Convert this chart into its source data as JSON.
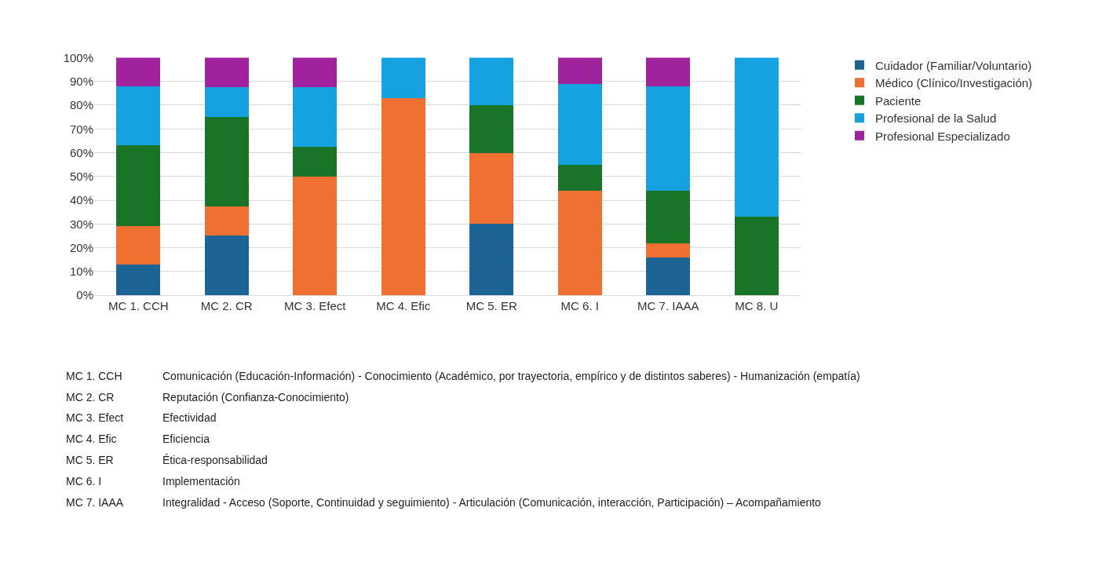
{
  "chart_data": {
    "type": "bar",
    "stacked": true,
    "categories": [
      "MC 1. CCH",
      "MC 2. CR",
      "MC 3. Efect",
      "MC 4. Efic",
      "MC 5. ER",
      "MC 6. I",
      "MC 7. IAAA",
      "MC 8. U"
    ],
    "series": [
      {
        "name": "Cuidador (Familiar/Voluntario)",
        "color": "#1d6494",
        "values": [
          13,
          25,
          0,
          0,
          30,
          0,
          16,
          0
        ]
      },
      {
        "name": "Médico (Clínico/Investigación)",
        "color": "#ef7030",
        "values": [
          16,
          12.5,
          50,
          83,
          30,
          44,
          6,
          0
        ]
      },
      {
        "name": "Paciente",
        "color": "#1a7428",
        "values": [
          34,
          37.5,
          12.5,
          0,
          20,
          11,
          22,
          33
        ]
      },
      {
        "name": "Profesional de la Salud",
        "color": "#16a2e0",
        "values": [
          25,
          12.5,
          25,
          17,
          20,
          34,
          44,
          67
        ]
      },
      {
        "name": "Profesional Especializado",
        "color": "#a0229c",
        "values": [
          12,
          12.5,
          12.5,
          0,
          0,
          11,
          12,
          0
        ]
      }
    ],
    "ylim": [
      0,
      100
    ],
    "yticks": [
      {
        "value": 0,
        "label": "0%"
      },
      {
        "value": 10,
        "label": "10%"
      },
      {
        "value": 20,
        "label": "20%"
      },
      {
        "value": 30,
        "label": "30%"
      },
      {
        "value": 40,
        "label": "40%"
      },
      {
        "value": 50,
        "label": "50%"
      },
      {
        "value": 60,
        "label": "60%"
      },
      {
        "value": 70,
        "label": "70%"
      },
      {
        "value": 80,
        "label": "80%"
      },
      {
        "value": 90,
        "label": "90%"
      },
      {
        "value": 100,
        "label": "100%"
      }
    ],
    "grid": "y",
    "legend": "right",
    "annotations": [
      "MC 1. CCH",
      "Comunicación (Educación-Información) - Conocimiento (Académico, por trayectoria, empírico y de distintos saberes) - Humanización (empatía)",
      "MC 2. CR",
      "Reputación (Confianza-Conocimiento)",
      "MC 3. Efect",
      "Efectividad",
      "MC 4. Efic",
      "Eficiencia",
      "MC 5. ER",
      "Ética-responsabilidad",
      "MC 6. I",
      "Implementación",
      "MC 7. IAAA",
      "Integralidad - Acceso (Soporte, Continuidad y seguimiento) - Articulación (Comunicación, interacción, Participación) – Acompañamiento"
    ]
  }
}
